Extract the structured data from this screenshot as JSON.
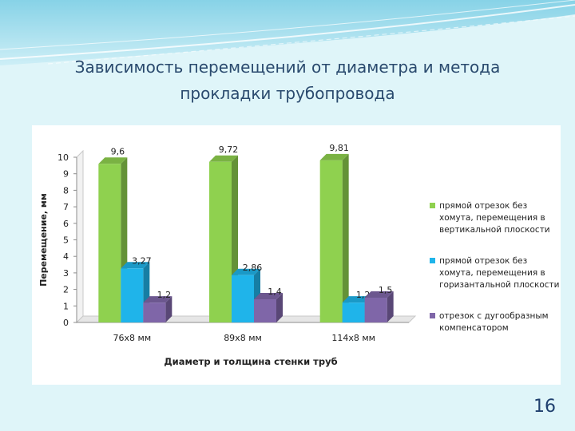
{
  "slide": {
    "title_line1": "Зависимость перемещений от диаметра и метода",
    "title_line2": "прокладки трубопровода",
    "page_number": "16"
  },
  "chart_data": {
    "type": "bar",
    "title": "",
    "xlabel": "Диаметр и толщина стенки труб",
    "ylabel": "Перемещение, мм",
    "ylim": [
      0,
      10
    ],
    "yticks": [
      0,
      1,
      2,
      3,
      4,
      5,
      6,
      7,
      8,
      9,
      10
    ],
    "categories": [
      "76x8 мм",
      "89x8 мм",
      "114x8 мм"
    ],
    "series": [
      {
        "name": "прямой отрезок без хомута, перемещения в вертикальной плоскости",
        "legend_lines": [
          "прямой отрезок без",
          "хомута, перемещения в",
          "вертикальной плоскости"
        ],
        "values": [
          9.6,
          9.72,
          9.81
        ],
        "labels": [
          "9,6",
          "9,72",
          "9,81"
        ],
        "color": "#8fd14f"
      },
      {
        "name": "прямой отрезок без хомута, перемещения в горизантальной плоскости",
        "legend_lines": [
          "прямой отрезок без",
          "хомута, перемещения в",
          "горизантальной плоскости"
        ],
        "values": [
          3.27,
          2.86,
          1.2
        ],
        "labels": [
          "3,27",
          "2,86",
          "1,2"
        ],
        "color": "#1fb4ea"
      },
      {
        "name": "отрезок с дугообразным компенсатором",
        "legend_lines": [
          "отрезок с дугообразным",
          "компенсатором"
        ],
        "values": [
          1.2,
          1.4,
          1.5
        ],
        "labels": [
          "1,2",
          "1,4",
          "1,5"
        ],
        "color": "#7f66a8"
      }
    ],
    "grid": false,
    "legend_position": "right"
  }
}
